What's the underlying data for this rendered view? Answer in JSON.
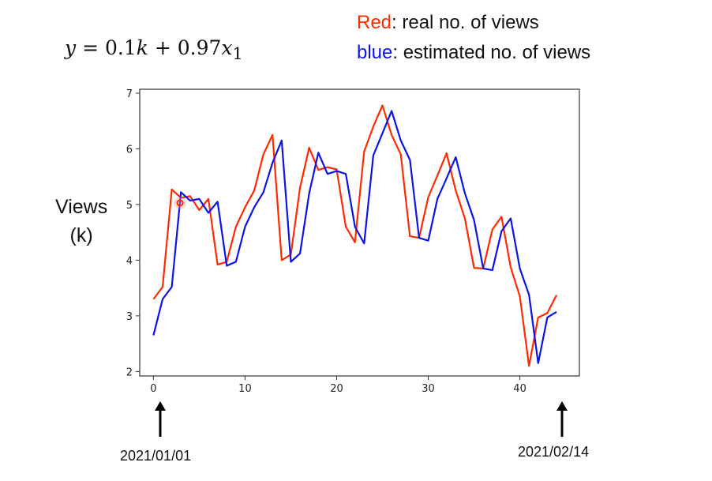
{
  "formula": {
    "lhs": "y",
    "eq": " = 0.1",
    "k": "k",
    "plus": " + 0.97",
    "x": "x",
    "sub": "1"
  },
  "legend": [
    {
      "key": "Red",
      "rest": ": real no. of views",
      "color": "#ff2a00"
    },
    {
      "key": "blue",
      "rest": ":  estimated no. of views",
      "color": "#0a14e6"
    }
  ],
  "ylabel_line1": "Views",
  "ylabel_line2": "(k)",
  "start_date": "2021/01/01",
  "end_date": "2021/02/14",
  "chart_data": {
    "type": "line",
    "xlim": [
      -1.5,
      46.5
    ],
    "ylim": [
      1.92,
      7.07
    ],
    "xticks": [
      0,
      10,
      20,
      30,
      40
    ],
    "yticks": [
      2,
      3,
      4,
      5,
      6,
      7
    ],
    "ylabel": "Views (k)",
    "x": [
      0,
      1,
      2,
      3,
      4,
      5,
      6,
      7,
      8,
      9,
      10,
      11,
      12,
      13,
      14,
      15,
      16,
      17,
      18,
      19,
      20,
      21,
      22,
      23,
      24,
      25,
      26,
      27,
      28,
      29,
      30,
      31,
      32,
      33,
      34,
      35,
      36,
      37,
      38,
      39,
      40,
      41,
      42,
      43,
      44
    ],
    "series": [
      {
        "name": "real no. of views",
        "color": "#ff2a00",
        "values": [
          3.3,
          3.52,
          5.27,
          5.12,
          5.15,
          4.9,
          5.1,
          3.92,
          3.97,
          4.6,
          4.95,
          5.25,
          5.9,
          6.25,
          4.0,
          4.1,
          5.3,
          6.02,
          5.62,
          5.67,
          5.63,
          4.6,
          4.32,
          5.95,
          6.4,
          6.78,
          6.25,
          5.9,
          4.43,
          4.4,
          5.13,
          5.52,
          5.92,
          5.25,
          4.75,
          3.86,
          3.85,
          4.55,
          4.78,
          3.87,
          3.35,
          2.1,
          2.97,
          3.05,
          3.37
        ]
      },
      {
        "name": "estimated no. of views",
        "color": "#0a14e6",
        "values": [
          2.65,
          3.3,
          3.52,
          5.22,
          5.07,
          5.1,
          4.85,
          5.05,
          3.9,
          3.97,
          4.6,
          4.95,
          5.22,
          5.75,
          6.15,
          3.97,
          4.12,
          5.2,
          5.93,
          5.55,
          5.6,
          5.55,
          4.6,
          4.3,
          5.88,
          6.28,
          6.68,
          6.15,
          5.8,
          4.4,
          4.35,
          5.1,
          5.47,
          5.85,
          5.2,
          4.72,
          3.85,
          3.82,
          4.52,
          4.75,
          3.85,
          3.38,
          2.15,
          2.97,
          3.07
        ]
      }
    ]
  }
}
